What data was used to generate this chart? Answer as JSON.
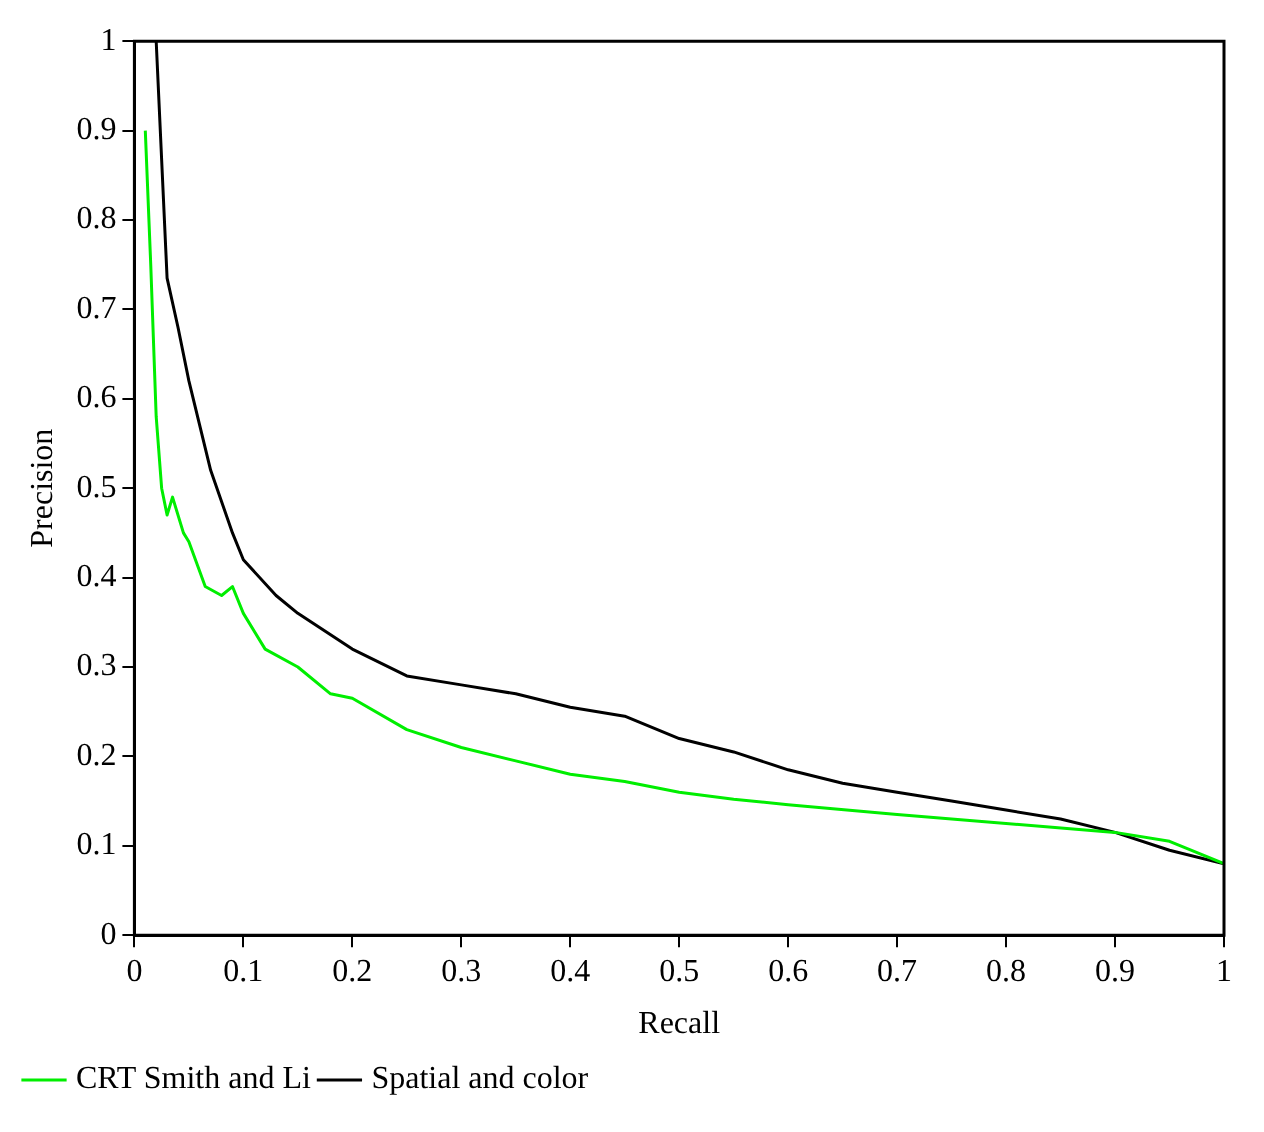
{
  "chart_data": {
    "type": "line",
    "xlabel": "Recall",
    "ylabel": "Precision",
    "xlim": [
      0,
      1
    ],
    "xticks": [
      0,
      0.1,
      0.2,
      0.3,
      0.4,
      0.5,
      0.6,
      0.7,
      0.8,
      0.9,
      1
    ],
    "ylim": [
      0,
      1
    ],
    "yticks": [
      0,
      0.1,
      0.2,
      0.3,
      0.4,
      0.5,
      0.6,
      0.7,
      0.8,
      0.9,
      1
    ],
    "grid": false,
    "legend": "bottom",
    "marker": "none",
    "line_style": "solid",
    "series": [
      {
        "name": "CRT Smith and Li",
        "color": "#00ee00",
        "x": [
          0.01,
          0.015,
          0.02,
          0.025,
          0.03,
          0.035,
          0.045,
          0.05,
          0.065,
          0.08,
          0.09,
          0.1,
          0.12,
          0.15,
          0.18,
          0.2,
          0.25,
          0.3,
          0.35,
          0.4,
          0.45,
          0.5,
          0.55,
          0.6,
          0.7,
          0.8,
          0.9,
          0.95,
          1.0
        ],
        "values": [
          0.9,
          0.75,
          0.58,
          0.5,
          0.47,
          0.49,
          0.45,
          0.44,
          0.39,
          0.38,
          0.39,
          0.36,
          0.32,
          0.3,
          0.27,
          0.265,
          0.23,
          0.21,
          0.195,
          0.18,
          0.172,
          0.16,
          0.152,
          0.146,
          0.135,
          0.125,
          0.115,
          0.105,
          0.08
        ]
      },
      {
        "name": "Spatial and color",
        "color": "#000000",
        "x": [
          0.02,
          0.03,
          0.04,
          0.05,
          0.07,
          0.09,
          0.1,
          0.13,
          0.15,
          0.2,
          0.25,
          0.3,
          0.35,
          0.4,
          0.45,
          0.5,
          0.55,
          0.6,
          0.65,
          0.7,
          0.75,
          0.8,
          0.85,
          0.9,
          0.95,
          1.0
        ],
        "values": [
          1.0,
          0.735,
          0.68,
          0.62,
          0.52,
          0.45,
          0.42,
          0.38,
          0.36,
          0.32,
          0.29,
          0.28,
          0.27,
          0.255,
          0.245,
          0.22,
          0.205,
          0.185,
          0.17,
          0.16,
          0.15,
          0.14,
          0.13,
          0.115,
          0.095,
          0.08
        ]
      }
    ]
  }
}
